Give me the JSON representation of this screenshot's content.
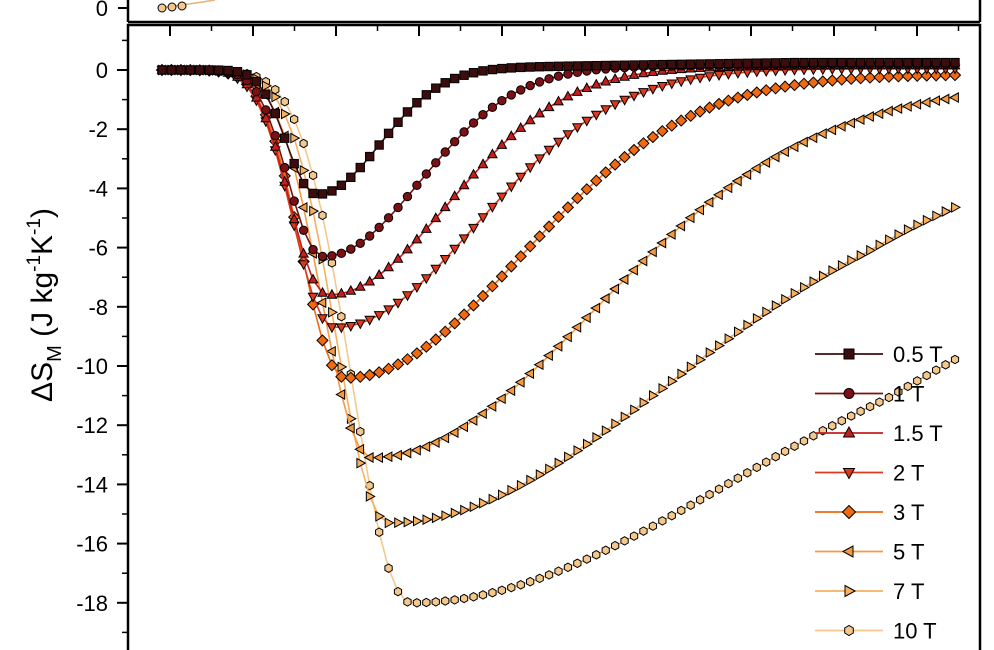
{
  "chart_data": {
    "type": "line",
    "ylabel": {
      "prefix": "ΔS",
      "sub": "M",
      "unit_a": " (J kg",
      "exp_a": "-1",
      "unit_b": "K",
      "exp_b": "-1",
      "close": ")"
    },
    "top_panel": {
      "tick_label": "0"
    },
    "ylim": [
      -19.2,
      1.0
    ],
    "yticks": [
      0,
      -2,
      -4,
      -6,
      -8,
      -10,
      -12,
      -14,
      -16,
      -18
    ],
    "ytick_labels": [
      "0",
      "-2",
      "-4",
      "-6",
      "-8",
      "-10",
      "-12",
      "-14",
      "-16",
      "-18"
    ],
    "x_range": [
      0,
      1
    ],
    "grid": false,
    "legend_position": "bottom-right",
    "series": [
      {
        "name": "0.5 T",
        "label": "0.5 T",
        "marker": "square",
        "color": "#3d0c0c",
        "peak": -4.2,
        "xmin": 0.196,
        "wl": 0.052,
        "wr": 0.11,
        "tail": 0.25
      },
      {
        "name": "1 T",
        "label": "1 T",
        "marker": "circle",
        "color": "#7a1115",
        "peak": -6.3,
        "xmin": 0.204,
        "wl": 0.06,
        "wr": 0.17,
        "tail": 0.2
      },
      {
        "name": "1.5 T",
        "label": "1.5 T",
        "marker": "triangle-up",
        "color": "#c41e1e",
        "peak": -7.6,
        "xmin": 0.21,
        "wl": 0.065,
        "wr": 0.21,
        "tail": 0.15
      },
      {
        "name": "2 T",
        "label": "2 T",
        "marker": "triangle-down",
        "color": "#dc3a1c",
        "peak": -8.7,
        "xmin": 0.218,
        "wl": 0.07,
        "wr": 0.25,
        "tail": 0.05
      },
      {
        "name": "3 T",
        "label": "3 T",
        "marker": "diamond",
        "color": "#ef6a10",
        "peak": -10.4,
        "xmin": 0.232,
        "wl": 0.075,
        "wr": 0.31,
        "tail": -0.15
      },
      {
        "name": "5 T",
        "label": "5 T",
        "marker": "triangle-left",
        "color": "#f49a42",
        "peak": -13.1,
        "xmin": 0.265,
        "wl": 0.085,
        "wr": 0.4,
        "tail": -0.5
      },
      {
        "name": "7 T",
        "label": "7 T",
        "marker": "triangle-right",
        "color": "#f6b060",
        "peak": -15.3,
        "xmin": 0.287,
        "wl": 0.09,
        "wr": 0.55,
        "tail": -2.2
      },
      {
        "name": "10 T",
        "label": "10 T",
        "marker": "hexagon",
        "color": "#f4c88c",
        "peak": -18.0,
        "xmin": 0.315,
        "wl": 0.1,
        "wr": 0.72,
        "tail": -4.2
      }
    ]
  }
}
